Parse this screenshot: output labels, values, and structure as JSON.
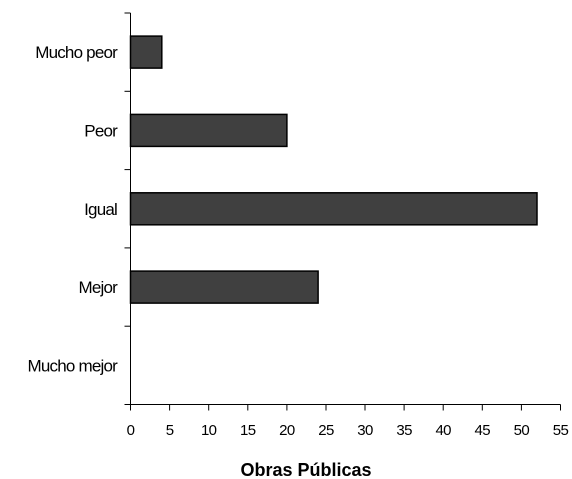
{
  "chart_data": {
    "type": "bar",
    "orientation": "horizontal",
    "categories": [
      "Mucho peor",
      "Peor",
      "Igual",
      "Mejor",
      "Mucho mejor"
    ],
    "values": [
      4,
      20,
      52,
      24,
      0
    ],
    "xlabel": "Obras Públicas",
    "ylabel": "",
    "xlim": [
      0,
      55
    ],
    "xticks": [
      0,
      5,
      10,
      15,
      20,
      25,
      30,
      35,
      40,
      45,
      50,
      55
    ],
    "grid": false,
    "legend": "none",
    "bar_color": "#404040",
    "bar_edge_color": "#000000"
  }
}
